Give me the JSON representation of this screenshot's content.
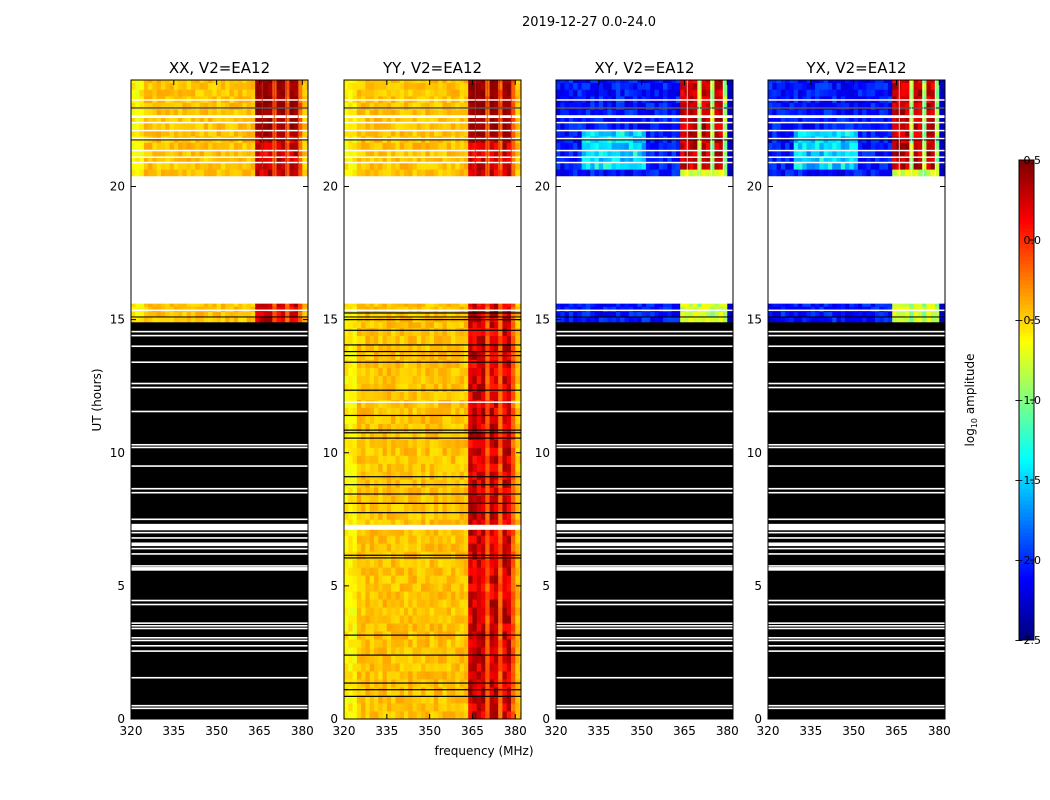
{
  "figure": {
    "suptitle": "2019-12-27 0.0-24.0"
  },
  "chart_data": {
    "type": "heatmap",
    "title": "2019-12-27 0.0-24.0",
    "xlabel": "frequency (MHz)",
    "ylabel": "UT (hours)",
    "xlim": [
      320,
      382
    ],
    "ylim": [
      0,
      24
    ],
    "xticks": [
      "320",
      "335",
      "350",
      "365",
      "380"
    ],
    "xtick_values": [
      320,
      335,
      350,
      365,
      380
    ],
    "yticks": [
      "0",
      "5",
      "10",
      "15",
      "20"
    ],
    "ytick_values": [
      0,
      5,
      10,
      15,
      20
    ],
    "panels": [
      {
        "title": "XX, V2=EA12",
        "pol": "XX",
        "kind": "parallel",
        "show_ylabel": true,
        "show_xlabel": false
      },
      {
        "title": "YY, V2=EA12",
        "pol": "YY",
        "kind": "parallel_full",
        "show_ylabel": false,
        "show_xlabel": true
      },
      {
        "title": "XY, V2=EA12",
        "pol": "XY",
        "kind": "cross",
        "show_ylabel": false,
        "show_xlabel": false
      },
      {
        "title": "YX, V2=EA12",
        "pol": "YX",
        "kind": "cross",
        "show_ylabel": false,
        "show_xlabel": false
      }
    ],
    "data_segments_hours": {
      "upper_block": [
        20.4,
        24.0
      ],
      "gap_no_data": [
        15.6,
        20.4
      ],
      "short_block": [
        14.9,
        15.6
      ],
      "lower_block": [
        0.0,
        14.9
      ]
    },
    "rfi_band_mhz": [
      363,
      380
    ],
    "colorbar": {
      "label": "log",
      "label_sub": "10",
      "label_rest": " amplitude",
      "min": -2.5,
      "max": 0.5,
      "ticks": [
        "−2.5",
        "−2.0",
        "−1.5",
        "−1.0",
        "−0.5",
        "0.0",
        "0.5"
      ],
      "tick_values": [
        -2.5,
        -2.0,
        -1.5,
        -1.0,
        -0.5,
        0.0,
        0.5
      ],
      "colormap": "jet"
    }
  }
}
